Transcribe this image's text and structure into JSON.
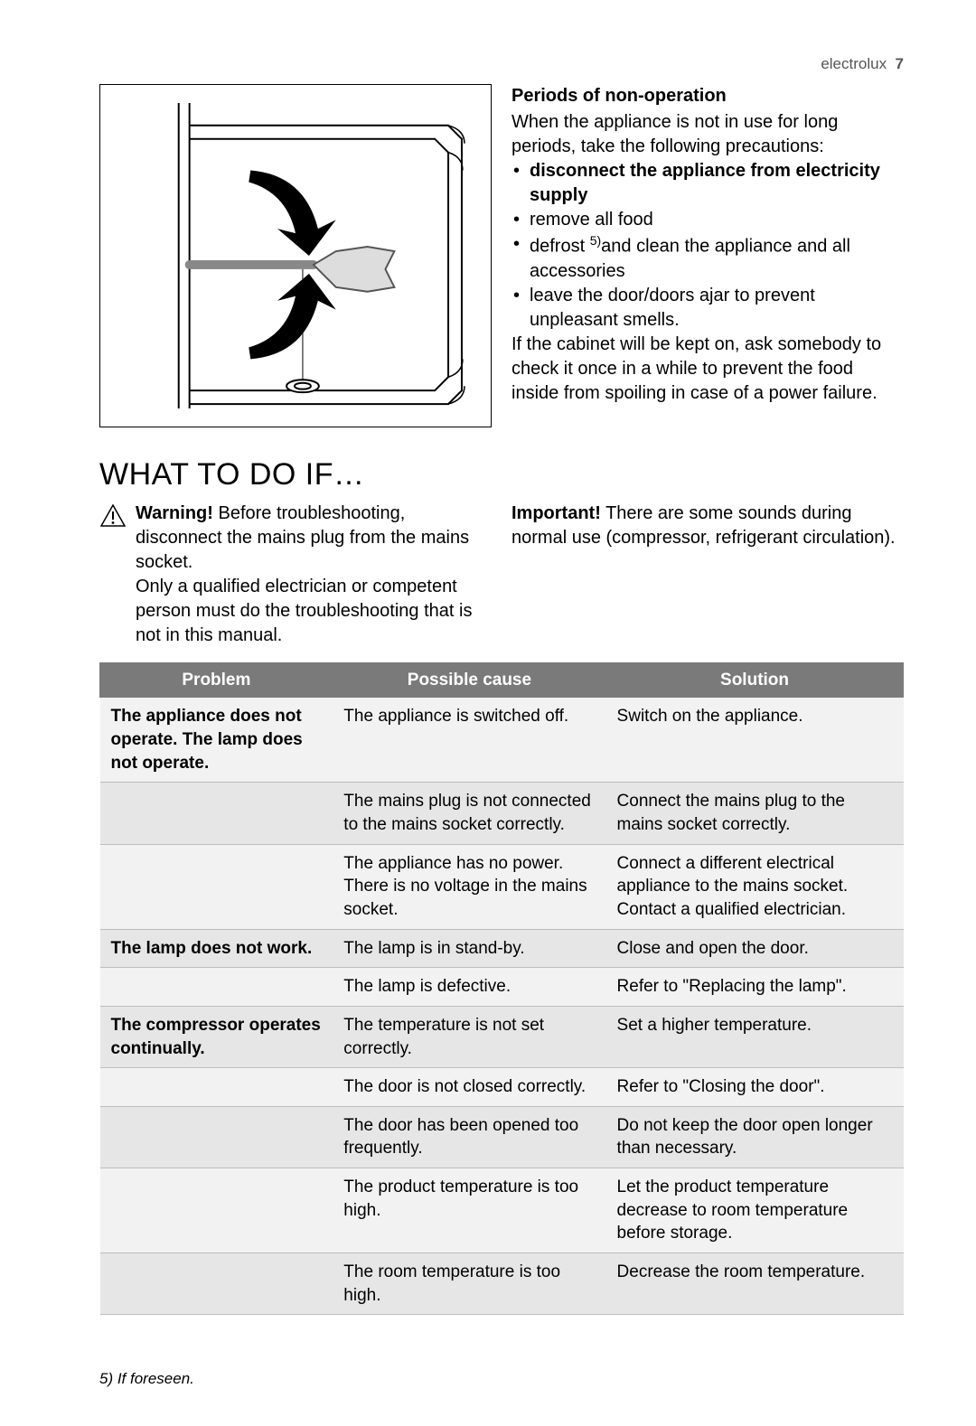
{
  "header": {
    "brand": "electrolux",
    "page_number": "7"
  },
  "non_operation": {
    "heading": "Periods of non-operation",
    "intro": "When the appliance is not in use for long periods, take the following precautions:",
    "bullets": {
      "b1_bold": "disconnect the appliance from electricity supply",
      "b2": "remove all food",
      "b3_pre": "defrost ",
      "b3_sup": "5)",
      "b3_post": "and clean the appliance and all accessories",
      "b4": "leave the door/doors ajar to prevent unpleasant smells."
    },
    "outro": "If the cabinet will be kept on, ask somebody to check it once in a while to prevent the food inside from spoiling in case of a power failure."
  },
  "section_title": "WHAT TO DO IF…",
  "warning": {
    "label": "Warning!",
    "text_1": " Before troubleshooting, disconnect the mains plug from the mains socket.",
    "text_2": "Only a qualified electrician or competent person must do the troubleshooting that is not in this manual."
  },
  "important": {
    "label": "Important!",
    "text": " There are some sounds during normal use (compressor, refrigerant circulation)."
  },
  "table": {
    "headers": {
      "c1": "Problem",
      "c2": "Possible cause",
      "c3": "Solution"
    },
    "rows": [
      {
        "alt": "A",
        "problem": "The appliance does not operate. The lamp does not operate.",
        "cause": "The appliance is switched off.",
        "solution": "Switch on the appliance."
      },
      {
        "alt": "B",
        "problem": "",
        "cause": "The mains plug is not connected to the mains socket correctly.",
        "solution": "Connect the mains plug to the mains socket correctly."
      },
      {
        "alt": "A",
        "problem": "",
        "cause": "The appliance has no power. There is no voltage in the mains socket.",
        "solution": "Connect a different electrical appliance to the mains socket. Contact a qualified electrician."
      },
      {
        "alt": "B",
        "problem": "The lamp does not work.",
        "cause": "The lamp is in stand-by.",
        "solution": "Close and open the door."
      },
      {
        "alt": "A",
        "problem": "",
        "cause": "The lamp is defective.",
        "solution": "Refer to \"Replacing the lamp\"."
      },
      {
        "alt": "B",
        "problem": "The compressor operates continually.",
        "cause": "The temperature is not set correctly.",
        "solution": "Set a higher temperature."
      },
      {
        "alt": "A",
        "problem": "",
        "cause": "The door is not closed correctly.",
        "solution": "Refer to \"Closing the door\"."
      },
      {
        "alt": "B",
        "problem": "",
        "cause": "The door has been opened too frequently.",
        "solution": "Do not keep the door open longer than necessary."
      },
      {
        "alt": "A",
        "problem": "",
        "cause": "The product temperature is too high.",
        "solution": "Let the product temperature decrease to room temperature before storage."
      },
      {
        "alt": "B",
        "problem": "",
        "cause": "The room temperature is too high.",
        "solution": "Decrease the room temperature."
      }
    ]
  },
  "footnote": "5) If foreseen."
}
